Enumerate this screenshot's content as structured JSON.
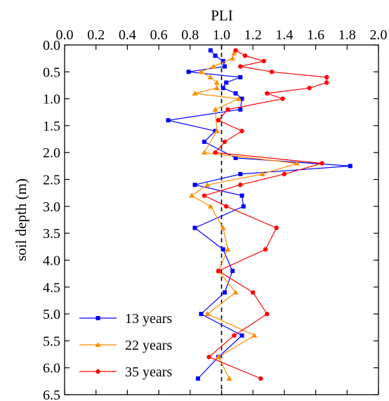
{
  "chart_data": {
    "type": "line",
    "title": "",
    "xlabel": "PLI",
    "ylabel": "soil depth (m)",
    "xlim": [
      0.0,
      2.0
    ],
    "ylim": [
      0.0,
      6.5
    ],
    "x_ticks": [
      "0.0",
      "0.2",
      "0.4",
      "0.6",
      "0.8",
      "1.0",
      "1.2",
      "1.4",
      "1.6",
      "1.8",
      "2.0"
    ],
    "y_ticks": [
      "0.0",
      "0.5",
      "1.0",
      "1.5",
      "2.0",
      "2.5",
      "3.0",
      "3.5",
      "4.0",
      "4.5",
      "5.0",
      "5.5",
      "6.0",
      "6.5"
    ],
    "x_axis_position": "top",
    "y_axis_inverted": true,
    "grid": false,
    "reference_line": {
      "x": 1.0,
      "style": "dashed"
    },
    "legend_position": "bottom-left",
    "series": [
      {
        "name": "13 years",
        "color": "#0000ff",
        "marker": "square",
        "points": [
          [
            0.93,
            0.1
          ],
          [
            0.96,
            0.2
          ],
          [
            1.01,
            0.3
          ],
          [
            1.02,
            0.4
          ],
          [
            0.79,
            0.5
          ],
          [
            1.12,
            0.6
          ],
          [
            1.03,
            0.7
          ],
          [
            1.01,
            0.8
          ],
          [
            1.09,
            0.9
          ],
          [
            1.13,
            1.0
          ],
          [
            1.12,
            1.2
          ],
          [
            0.66,
            1.4
          ],
          [
            0.96,
            1.6
          ],
          [
            0.89,
            1.8
          ],
          [
            1.09,
            2.1
          ],
          [
            1.82,
            2.25
          ],
          [
            1.12,
            2.4
          ],
          [
            0.83,
            2.6
          ],
          [
            1.13,
            2.8
          ],
          [
            1.14,
            3.0
          ],
          [
            0.83,
            3.4
          ],
          [
            1.01,
            3.8
          ],
          [
            1.07,
            4.2
          ],
          [
            1.02,
            4.6
          ],
          [
            0.87,
            5.0
          ],
          [
            1.13,
            5.4
          ],
          [
            0.98,
            5.8
          ],
          [
            0.85,
            6.2
          ]
        ]
      },
      {
        "name": "22 years",
        "color": "#ff8c00",
        "marker": "triangle",
        "points": [
          [
            1.08,
            0.15
          ],
          [
            1.07,
            0.25
          ],
          [
            0.95,
            0.4
          ],
          [
            0.87,
            0.5
          ],
          [
            0.93,
            0.6
          ],
          [
            0.97,
            0.7
          ],
          [
            0.97,
            0.8
          ],
          [
            0.83,
            0.9
          ],
          [
            1.11,
            1.0
          ],
          [
            0.96,
            1.2
          ],
          [
            0.97,
            1.6
          ],
          [
            0.89,
            2.0
          ],
          [
            1.48,
            2.2
          ],
          [
            1.26,
            2.4
          ],
          [
            0.91,
            2.6
          ],
          [
            0.81,
            2.8
          ],
          [
            0.93,
            3.0
          ],
          [
            1.01,
            3.4
          ],
          [
            1.04,
            3.8
          ],
          [
            0.98,
            4.2
          ],
          [
            1.09,
            4.6
          ],
          [
            0.91,
            5.0
          ],
          [
            1.21,
            5.4
          ],
          [
            0.98,
            5.8
          ],
          [
            1.05,
            6.2
          ]
        ]
      },
      {
        "name": "35 years",
        "color": "#ff0000",
        "marker": "circle",
        "points": [
          [
            1.09,
            0.1
          ],
          [
            1.15,
            0.2
          ],
          [
            1.27,
            0.3
          ],
          [
            1.12,
            0.4
          ],
          [
            1.32,
            0.5
          ],
          [
            1.67,
            0.6
          ],
          [
            1.67,
            0.7
          ],
          [
            1.56,
            0.8
          ],
          [
            1.29,
            0.9
          ],
          [
            1.39,
            1.0
          ],
          [
            1.04,
            1.2
          ],
          [
            0.98,
            1.4
          ],
          [
            1.13,
            1.6
          ],
          [
            1.02,
            1.8
          ],
          [
            0.96,
            2.0
          ],
          [
            1.64,
            2.2
          ],
          [
            1.4,
            2.4
          ],
          [
            1.12,
            2.6
          ],
          [
            0.89,
            2.8
          ],
          [
            1.03,
            3.0
          ],
          [
            1.35,
            3.4
          ],
          [
            1.28,
            3.8
          ],
          [
            0.98,
            4.2
          ],
          [
            1.2,
            4.6
          ],
          [
            1.29,
            5.0
          ],
          [
            1.08,
            5.4
          ],
          [
            0.92,
            5.8
          ],
          [
            1.25,
            6.2
          ]
        ]
      }
    ]
  }
}
